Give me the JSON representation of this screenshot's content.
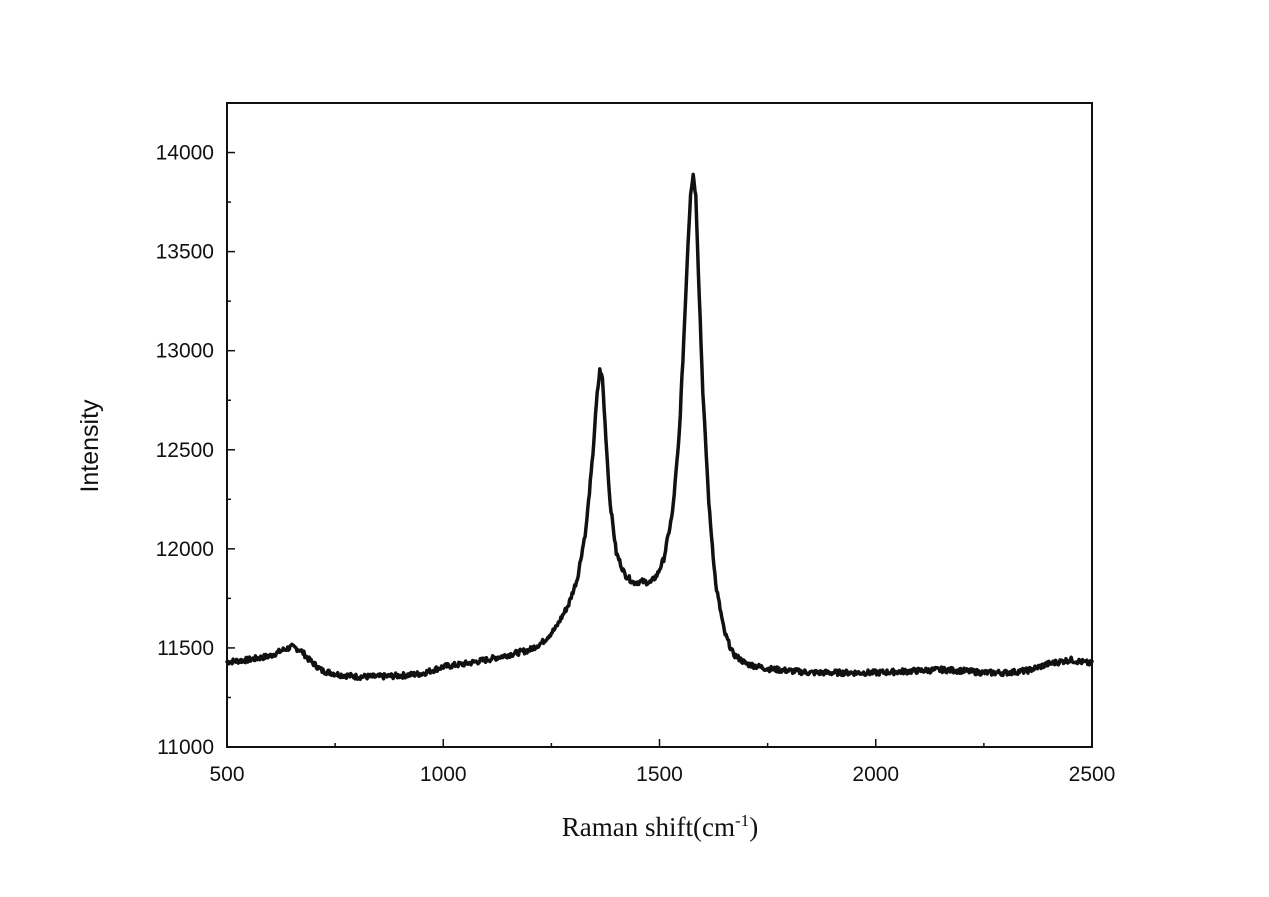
{
  "chart_data": {
    "type": "line",
    "title": "",
    "xlabel": "Raman shift(cm",
    "xlabel_sup": "-1",
    "xlabel_close": ")",
    "ylabel": "Intensity",
    "xlim": [
      500,
      2500
    ],
    "ylim": [
      11000,
      14250
    ],
    "x_ticks": [
      500,
      1000,
      1500,
      2000,
      2500
    ],
    "x_tick_labels": [
      "500",
      "1000",
      "1500",
      "2000",
      "2500"
    ],
    "y_ticks": [
      11000,
      11500,
      12000,
      12500,
      13000,
      13500,
      14000
    ],
    "y_tick_labels": [
      "11000",
      "11500",
      "12000",
      "12500",
      "13000",
      "13500",
      "14000"
    ],
    "grid": false,
    "line_color": "#111111",
    "series": [
      {
        "x": [
          500,
          550,
          600,
          630,
          650,
          670,
          690,
          720,
          760,
          800,
          850,
          900,
          950,
          1000,
          1050,
          1100,
          1150,
          1200,
          1230,
          1260,
          1290,
          1310,
          1330,
          1345,
          1355,
          1362,
          1368,
          1375,
          1385,
          1400,
          1420,
          1440,
          1460,
          1480,
          1495,
          1510,
          1530,
          1545,
          1555,
          1565,
          1572,
          1578,
          1584,
          1590,
          1600,
          1615,
          1630,
          1650,
          1670,
          1700,
          1750,
          1800,
          1850,
          1900,
          1950,
          2000,
          2050,
          2100,
          2150,
          2200,
          2250,
          2300,
          2350,
          2400,
          2450,
          2500
        ],
        "y": [
          11430,
          11440,
          11460,
          11490,
          11505,
          11490,
          11440,
          11385,
          11365,
          11355,
          11355,
          11360,
          11370,
          11405,
          11420,
          11440,
          11465,
          11490,
          11530,
          11600,
          11720,
          11850,
          12100,
          12450,
          12760,
          12900,
          12860,
          12600,
          12250,
          11980,
          11870,
          11830,
          11835,
          11830,
          11870,
          11950,
          12180,
          12550,
          13000,
          13500,
          13800,
          13890,
          13780,
          13400,
          12800,
          12200,
          11820,
          11580,
          11470,
          11420,
          11395,
          11385,
          11375,
          11375,
          11375,
          11375,
          11380,
          11385,
          11390,
          11385,
          11375,
          11375,
          11385,
          11420,
          11440,
          11420
        ]
      }
    ]
  }
}
